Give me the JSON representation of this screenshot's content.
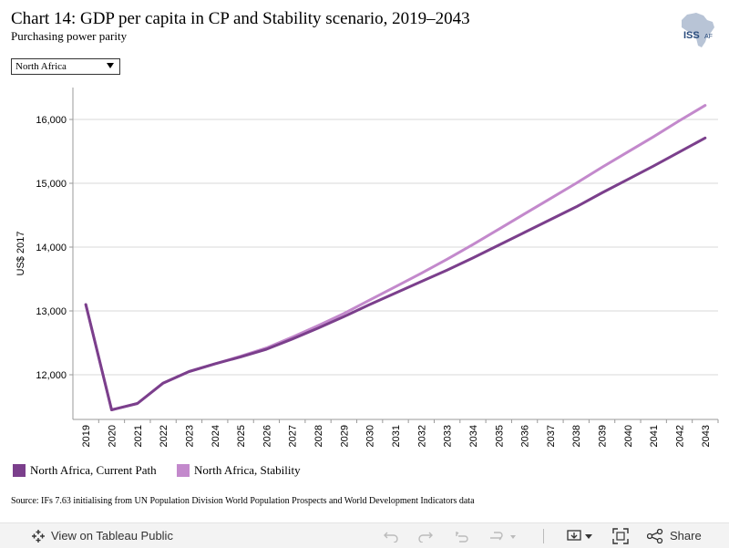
{
  "header": {
    "title": "Chart 14: GDP per capita in CP and Stability scenario, 2019–2043",
    "subtitle": "Purchasing power parity",
    "logo_text": "ISS AFRICA"
  },
  "filter": {
    "selected": "North Africa"
  },
  "chart_data": {
    "type": "line",
    "x": [
      2019,
      2020,
      2021,
      2022,
      2023,
      2024,
      2025,
      2026,
      2027,
      2028,
      2029,
      2030,
      2031,
      2032,
      2033,
      2034,
      2035,
      2036,
      2037,
      2038,
      2039,
      2040,
      2041,
      2042,
      2043
    ],
    "series": [
      {
        "name": "North Africa, Current Path",
        "color": "#7b3f8c",
        "values": [
          13100,
          11450,
          11550,
          11870,
          12050,
          12170,
          12280,
          12400,
          12560,
          12730,
          12910,
          13100,
          13280,
          13460,
          13640,
          13830,
          14030,
          14230,
          14430,
          14630,
          14850,
          15060,
          15270,
          15490,
          15710
        ]
      },
      {
        "name": "North Africa, Stability",
        "color": "#c389cc",
        "values": [
          13100,
          11450,
          11550,
          11870,
          12050,
          12170,
          12290,
          12420,
          12590,
          12770,
          12960,
          13170,
          13380,
          13590,
          13810,
          14040,
          14280,
          14520,
          14760,
          15000,
          15250,
          15490,
          15730,
          15980,
          16220
        ]
      }
    ],
    "ylabel": "US$ 2017",
    "yticks": [
      12000,
      13000,
      14000,
      15000,
      16000
    ],
    "ytick_labels": [
      "12,000",
      "13,000",
      "14,000",
      "15,000",
      "16,000"
    ],
    "ylim": [
      11300,
      16500
    ],
    "grid": true,
    "legend_position": "bottom-left"
  },
  "legend": {
    "items": [
      {
        "label": "North Africa, Current Path",
        "color": "#7b3f8c"
      },
      {
        "label": "North Africa, Stability",
        "color": "#c389cc"
      }
    ]
  },
  "source": "Source: IFs 7.63 initialising from UN Population Division World Population Prospects and World Development Indicators data",
  "footer": {
    "view_label": "View on Tableau Public",
    "share_label": "Share"
  }
}
